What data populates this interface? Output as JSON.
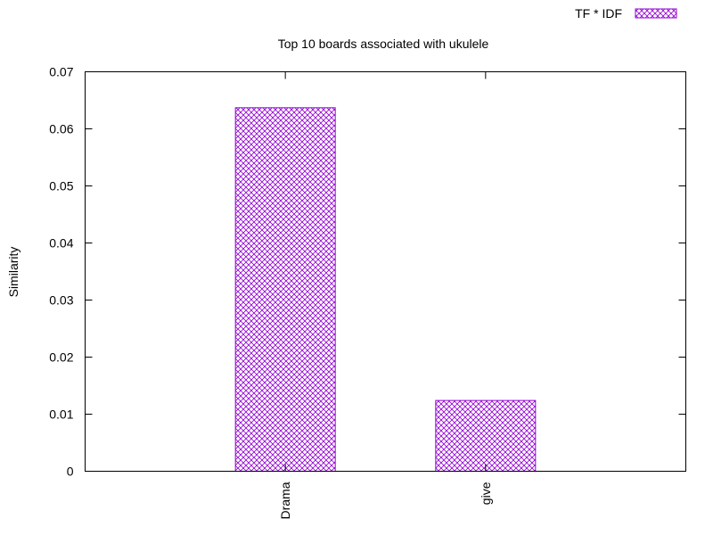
{
  "chart_data": {
    "type": "bar",
    "title": "Top 10 boards associated with ukulele",
    "ylabel": "Similarity",
    "xlabel": "",
    "categories": [
      "Drama",
      "give"
    ],
    "series": [
      {
        "name": "TF * IDF",
        "values": [
          0.0637,
          0.0124
        ]
      }
    ],
    "ylim": [
      0,
      0.07
    ],
    "yticks": [
      "0",
      "0.01",
      "0.02",
      "0.03",
      "0.04",
      "0.05",
      "0.06",
      "0.07"
    ],
    "grid": false,
    "legend_position": "top-right",
    "bar_color": "#9400d3",
    "bar_pattern": "crosshatch"
  }
}
